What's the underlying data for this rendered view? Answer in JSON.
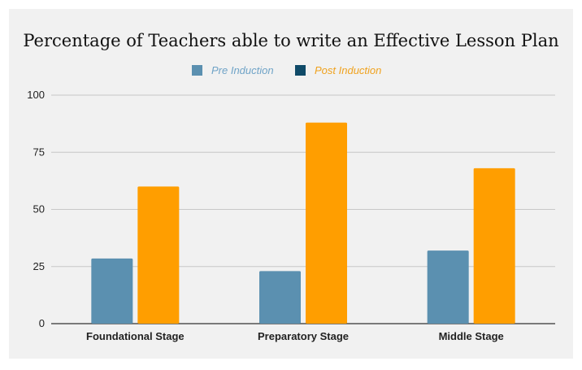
{
  "chart_data": {
    "type": "bar",
    "title": "Percentage of Teachers able to write an Effective Lesson Plan",
    "xlabel": "",
    "ylabel": "",
    "categories": [
      "Foundational Stage",
      "Preparatory Stage",
      "Middle Stage"
    ],
    "series": [
      {
        "name": "Pre Induction",
        "values": [
          28.5,
          23.0,
          32.0
        ],
        "color": "#5b90b0",
        "legend_text_color": "#6fa3c7"
      },
      {
        "name": "Post Induction",
        "values": [
          60.0,
          88.0,
          68.0
        ],
        "color": "#ff9e00",
        "legend_text_color": "#f0a21e"
      }
    ],
    "legend_swatch_colors": [
      "#5b90b0",
      "#0f4a68"
    ],
    "ylim": [
      0,
      100
    ],
    "yticks": [
      "0",
      "25",
      "50",
      "75",
      "100"
    ],
    "grid": true,
    "legend_position": "top-center"
  }
}
